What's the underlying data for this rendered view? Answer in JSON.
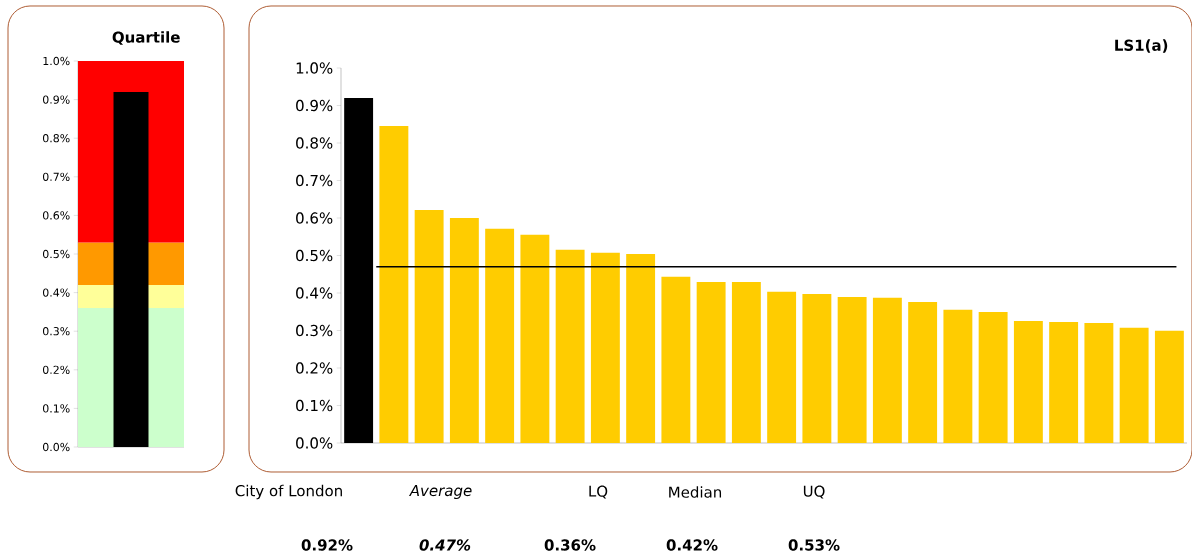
{
  "chart_data": [
    {
      "type": "bar",
      "title": "Quartile",
      "categories": [
        null
      ],
      "values": [
        0.92
      ],
      "color": "#000000",
      "bands": [
        {
          "axis": "y",
          "from": 0,
          "to": 0.36,
          "color": "#ccffcc"
        },
        {
          "axis": "y",
          "from": 0.36,
          "to": 0.42,
          "color": "#ffff99"
        },
        {
          "axis": "y",
          "from": 0.42,
          "to": 0.53,
          "color": "#ff9900"
        },
        {
          "axis": "y",
          "from": 0.53,
          "to": 1.0,
          "color": "#ff0000"
        }
      ],
      "ylim": [
        0,
        1.0
      ],
      "yticks": [
        {
          "value": 0,
          "label": "0.0%"
        },
        {
          "value": 0.1,
          "label": "0.1%"
        },
        {
          "value": 0.2,
          "label": "0.2%"
        },
        {
          "value": 0.3,
          "label": "0.3%"
        },
        {
          "value": 0.4,
          "label": "0.4%"
        },
        {
          "value": 0.5,
          "label": "0.5%"
        },
        {
          "value": 0.6,
          "label": "0.6%"
        },
        {
          "value": 0.7,
          "label": "0.7%"
        },
        {
          "value": 0.8,
          "label": "0.8%"
        },
        {
          "value": 0.9,
          "label": "0.9%"
        },
        {
          "value": 1.0,
          "label": "1.0%"
        }
      ],
      "tick_labels": "y"
    },
    {
      "type": "bar",
      "title": "LS1(a)",
      "categories": [
        null,
        null,
        null,
        null,
        null,
        null,
        null,
        null,
        null,
        null,
        null,
        null,
        null,
        null,
        null,
        null,
        null,
        null,
        null,
        null,
        null,
        null,
        null,
        null
      ],
      "values": [
        0.92,
        0.845,
        0.621,
        0.6,
        0.571,
        0.555,
        0.515,
        0.507,
        0.504,
        0.443,
        0.429,
        0.429,
        0.403,
        0.397,
        0.389,
        0.387,
        0.376,
        0.355,
        0.349,
        0.325,
        0.323,
        0.32,
        0.307,
        0.299
      ],
      "colors": [
        "#000000",
        "#ffcc00",
        "#ffcc00",
        "#ffcc00",
        "#ffcc00",
        "#ffcc00",
        "#ffcc00",
        "#ffcc00",
        "#ffcc00",
        "#ffcc00",
        "#ffcc00",
        "#ffcc00",
        "#ffcc00",
        "#ffcc00",
        "#ffcc00",
        "#ffcc00",
        "#ffcc00",
        "#ffcc00",
        "#ffcc00",
        "#ffcc00",
        "#ffcc00",
        "#ffcc00",
        "#ffcc00",
        "#ffcc00"
      ],
      "ref_lines": [
        {
          "axis": "y",
          "value": 0.47,
          "color": "#000000"
        }
      ],
      "ylim": [
        0,
        1.0
      ],
      "yticks": [
        {
          "value": 0,
          "label": "0.0%"
        },
        {
          "value": 0.1,
          "label": "0.1%"
        },
        {
          "value": 0.2,
          "label": "0.2%"
        },
        {
          "value": 0.3,
          "label": "0.3%"
        },
        {
          "value": 0.4,
          "label": "0.4%"
        },
        {
          "value": 0.5,
          "label": "0.5%"
        },
        {
          "value": 0.6,
          "label": "0.6%"
        },
        {
          "value": 0.7,
          "label": "0.7%"
        },
        {
          "value": 0.8,
          "label": "0.8%"
        },
        {
          "value": 0.9,
          "label": "0.9%"
        },
        {
          "value": 1.0,
          "label": "1.0%"
        }
      ],
      "tick_labels": "y",
      "annotations": [
        "City of London",
        "*Average*",
        "LQ",
        "Median",
        "UQ",
        "0.92%",
        "*0.47%*",
        "0.36%",
        "0.42%",
        "0.53%"
      ]
    }
  ]
}
